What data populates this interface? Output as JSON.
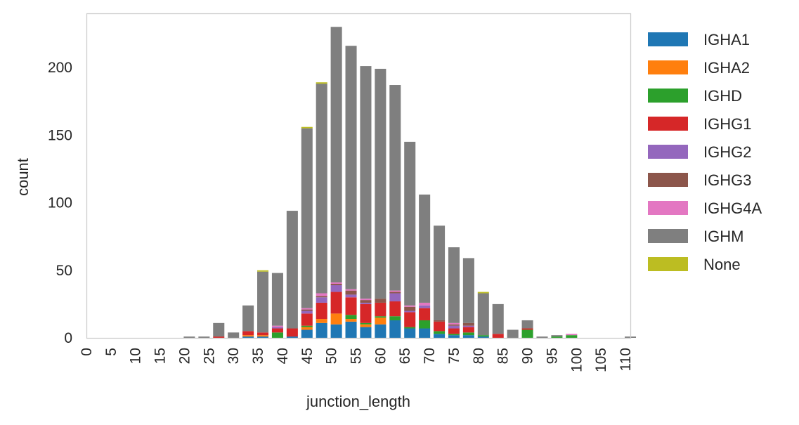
{
  "chart_data": {
    "type": "bar",
    "stacked": true,
    "xlabel": "junction_length",
    "ylabel": "count",
    "xlim": [
      0,
      111
    ],
    "ylim": [
      0,
      240
    ],
    "grid": false,
    "legend_position": "outside-right",
    "x_ticks": [
      0,
      5,
      10,
      15,
      20,
      25,
      30,
      35,
      40,
      45,
      50,
      55,
      60,
      65,
      70,
      75,
      80,
      85,
      90,
      95,
      100,
      105,
      110
    ],
    "x_tick_labels": [
      "0",
      "5",
      "10",
      "15",
      "20",
      "25",
      "30",
      "35",
      "40",
      "45",
      "50",
      "55",
      "60",
      "65",
      "70",
      "75",
      "80",
      "85",
      "90",
      "95",
      "100",
      "105",
      "110"
    ],
    "y_ticks": [
      0,
      50,
      100,
      150,
      200
    ],
    "y_tick_labels": [
      "0",
      "50",
      "100",
      "150",
      "200"
    ],
    "x": [
      21,
      24,
      27,
      30,
      33,
      36,
      39,
      42,
      45,
      48,
      51,
      54,
      57,
      60,
      63,
      66,
      69,
      72,
      75,
      78,
      81,
      84,
      87,
      90,
      93,
      96,
      99,
      111
    ],
    "series": [
      {
        "name": "IGHA1",
        "color": "#1f77b4",
        "values": [
          0,
          0,
          0,
          0,
          1,
          1,
          0,
          1,
          6,
          11,
          10,
          12,
          8,
          10,
          13,
          7,
          7,
          3,
          2,
          2,
          1,
          0,
          0,
          0,
          0,
          0,
          0,
          0
        ]
      },
      {
        "name": "IGHA2",
        "color": "#ff7f0e",
        "values": [
          0,
          0,
          0,
          0,
          1,
          1,
          0,
          0,
          2,
          3,
          8,
          2,
          2,
          5,
          0,
          0,
          0,
          0,
          0,
          0,
          0,
          0,
          0,
          0,
          0,
          0,
          0,
          0
        ]
      },
      {
        "name": "IGHD",
        "color": "#2ca02c",
        "values": [
          0,
          0,
          0,
          0,
          0,
          0,
          4,
          0,
          1,
          0,
          0,
          3,
          1,
          1,
          3,
          1,
          6,
          2,
          1,
          2,
          1,
          0,
          0,
          6,
          0,
          1,
          2,
          0
        ]
      },
      {
        "name": "IGHG1",
        "color": "#d62728",
        "values": [
          0,
          0,
          1,
          0,
          3,
          2,
          3,
          6,
          9,
          12,
          16,
          13,
          14,
          10,
          11,
          11,
          9,
          7,
          4,
          4,
          0,
          3,
          0,
          1,
          0,
          0,
          0,
          0
        ]
      },
      {
        "name": "IGHG2",
        "color": "#9467bd",
        "values": [
          0,
          0,
          0,
          0,
          0,
          0,
          1,
          0,
          2,
          4,
          5,
          2,
          1,
          0,
          6,
          1,
          2,
          0,
          2,
          1,
          0,
          0,
          0,
          0,
          0,
          0,
          0,
          0
        ]
      },
      {
        "name": "IGHG3",
        "color": "#8c564b",
        "values": [
          0,
          0,
          0,
          0,
          0,
          0,
          0,
          0,
          1,
          1,
          1,
          3,
          2,
          3,
          1,
          3,
          0,
          1,
          1,
          2,
          0,
          0,
          0,
          0,
          0,
          0,
          0,
          0
        ]
      },
      {
        "name": "IGHG4A",
        "color": "#e377c2",
        "values": [
          0,
          0,
          0,
          0,
          0,
          0,
          1,
          0,
          1,
          2,
          1,
          1,
          1,
          0,
          1,
          1,
          2,
          0,
          1,
          0,
          0,
          0,
          0,
          0,
          0,
          0,
          1,
          0
        ]
      },
      {
        "name": "IGHM",
        "color": "#7f7f7f",
        "values": [
          1,
          1,
          10,
          4,
          19,
          45,
          39,
          87,
          133,
          155,
          189,
          180,
          172,
          170,
          152,
          121,
          80,
          70,
          56,
          48,
          31,
          22,
          6,
          6,
          1,
          1,
          0,
          1
        ]
      },
      {
        "name": "None",
        "color": "#bcbd22",
        "values": [
          0,
          0,
          0,
          0,
          0,
          1,
          0,
          0,
          1,
          1,
          0,
          0,
          0,
          0,
          0,
          0,
          0,
          0,
          0,
          0,
          1,
          0,
          0,
          0,
          0,
          0,
          0,
          0
        ]
      }
    ]
  }
}
